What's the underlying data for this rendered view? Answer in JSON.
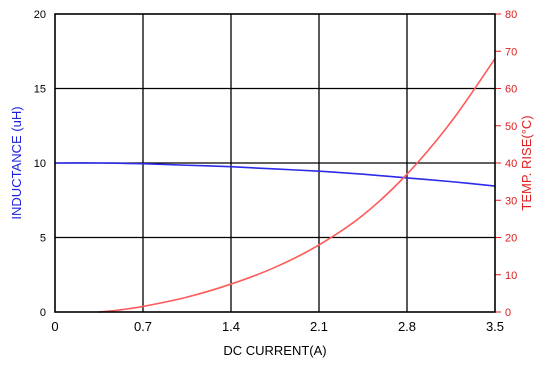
{
  "colors": {
    "inductance": "#2b2be8",
    "temp_rise": "#ff5a5a",
    "left_axis_text": "#1f1fe0",
    "right_axis_text": "#d92020",
    "grid": "#000000",
    "background": "#ffffff"
  },
  "chart_data": {
    "type": "line",
    "title": "",
    "xlabel": "DC CURRENT(A)",
    "ylabel_left": "INDUCTANCE (uH)",
    "ylabel_right": "TEMP. RISE(°C)",
    "xlim": [
      0,
      3.5
    ],
    "ylim_left": [
      0,
      20
    ],
    "ylim_right": [
      0,
      80
    ],
    "grid": true,
    "x_ticks": [
      "0",
      "0.7",
      "1.4",
      "2.1",
      "2.8",
      "3.5"
    ],
    "y_left_ticks": [
      "0",
      "5",
      "10",
      "15",
      "20"
    ],
    "y_right_ticks": [
      "0",
      "10",
      "20",
      "30",
      "40",
      "50",
      "60",
      "70",
      "80"
    ],
    "series": [
      {
        "name": "",
        "axis": "left",
        "color": "#2b2be8",
        "x": [
          0,
          0.35,
          0.7,
          1.05,
          1.4,
          1.75,
          2.1,
          2.45,
          2.8,
          3.15,
          3.5
        ],
        "y": [
          10.0,
          10.0,
          9.95,
          9.85,
          9.75,
          9.6,
          9.45,
          9.25,
          9.0,
          8.75,
          8.45
        ]
      },
      {
        "name": "",
        "axis": "right",
        "color": "#ff5a5a",
        "x": [
          0.35,
          0.5,
          0.7,
          1.05,
          1.4,
          1.75,
          2.1,
          2.45,
          2.8,
          3.15,
          3.5
        ],
        "y": [
          0,
          0.5,
          1.5,
          4,
          7.5,
          12,
          18,
          26,
          37,
          51,
          68
        ]
      }
    ]
  }
}
